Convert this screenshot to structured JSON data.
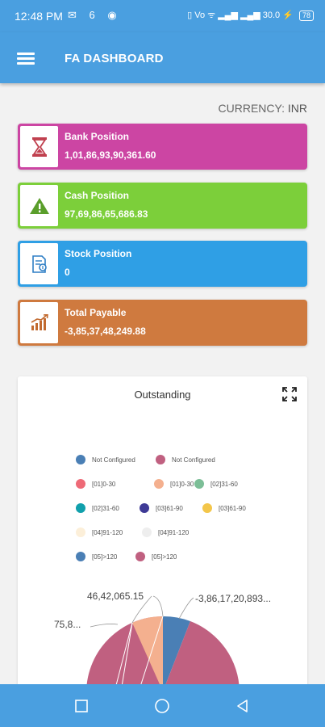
{
  "status_bar": {
    "time": "12:48 PM",
    "left_icons": "✉ 6 ◉",
    "right_icons": "▯ Vo ᯤ ▂▄▆ ▂▄▆ 30.0 ⚡",
    "battery": "78"
  },
  "app": {
    "title": "FA DASHBOARD"
  },
  "currency": {
    "label": "CURRENCY:",
    "value": "INR"
  },
  "cards": [
    {
      "title": "Bank Position",
      "value": "1,01,86,93,90,361.60",
      "color": "#cc45a3",
      "icon": "hourglass-icon"
    },
    {
      "title": "Cash Position",
      "value": "97,69,86,65,686.83",
      "color": "#7ccf3a",
      "icon": "warning-icon"
    },
    {
      "title": "Stock Position",
      "value": "0",
      "color": "#2f9fe5",
      "icon": "document-icon"
    },
    {
      "title": "Total Payable",
      "value": "-3,85,37,48,249.88",
      "color": "#cf7a3f",
      "icon": "bar-chart-icon"
    }
  ],
  "chart_data": {
    "type": "pie",
    "title": "Outstanding",
    "legend": [
      {
        "label": "Not Configured",
        "color": "#4a7fb5"
      },
      {
        "label": "Not Configured",
        "color": "#c06080"
      },
      {
        "label": "[01]0-30",
        "color": "#ee6a77"
      },
      {
        "label": "[01]0-30",
        "color": "#f4b08f"
      },
      {
        "label": "[02]31-60",
        "color": "#7cbe97"
      },
      {
        "label": "[02]31-60",
        "color": "#11a0ac"
      },
      {
        "label": "[03]61-90",
        "color": "#3e3a96"
      },
      {
        "label": "[03]61-90",
        "color": "#f3c64a"
      },
      {
        "label": "[04]91-120",
        "color": "#fcefd9"
      },
      {
        "label": "[04]91-120",
        "color": "#eeeeee"
      },
      {
        "label": "[05]>120",
        "color": "#4a7fb5"
      },
      {
        "label": "[05]>120",
        "color": "#c06080"
      }
    ],
    "data_labels": [
      "46,42,065.15",
      "-3,86,17,20,893...",
      "75,8..."
    ]
  },
  "nav": {
    "recents": "recents-square-icon",
    "home": "home-circle-icon",
    "back": "back-triangle-icon"
  }
}
